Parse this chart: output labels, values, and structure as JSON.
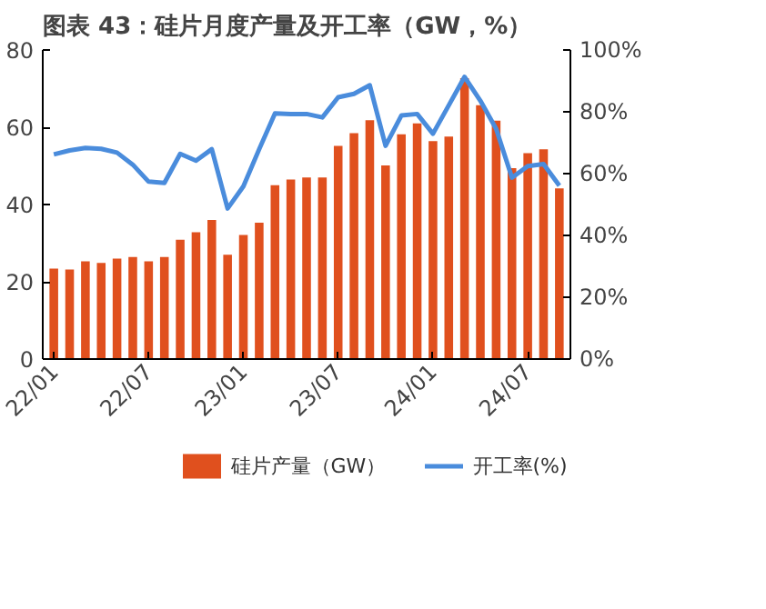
{
  "chart_data": {
    "type": "bar",
    "title": "图表 43：硅片月度产量及开工率（GW，%）",
    "categories": [
      "22/01",
      null,
      null,
      null,
      null,
      null,
      "22/07",
      null,
      null,
      null,
      null,
      null,
      "23/01",
      null,
      null,
      null,
      null,
      null,
      "23/07",
      null,
      null,
      null,
      null,
      null,
      "24/01",
      null,
      null,
      null,
      null,
      null,
      "24/07",
      null,
      null
    ],
    "series": [
      {
        "name": "硅片产量（GW）",
        "color": "#e0501e",
        "values": [
          23.4,
          23.2,
          25.3,
          24.9,
          26,
          26.4,
          25.3,
          26.4,
          30.9,
          32.8,
          36,
          27,
          32.1,
          35.3,
          45,
          46.5,
          47,
          47,
          55.2,
          58.5,
          61.8,
          50.1,
          58.2,
          61,
          56.4,
          57.6,
          72.7,
          65.7,
          61.7,
          49.4,
          53.3,
          54.3,
          44.2
        ]
      },
      {
        "name": "开工率(%)",
        "color": "#4a8cdc",
        "type": "line",
        "axis": "y2",
        "values": [
          66.2,
          67.5,
          68.3,
          68,
          66.8,
          62.9,
          57.4,
          57,
          66.4,
          64.2,
          67.9,
          48.7,
          55.9,
          67.9,
          79.5,
          79.3,
          79.3,
          78.2,
          84.7,
          85.8,
          88.6,
          69,
          78.8,
          79.3,
          72.9,
          82.1,
          91.3,
          83.6,
          74.5,
          58.7,
          62.4,
          63.1,
          56.1
        ]
      }
    ],
    "ylim": [
      0,
      80
    ],
    "yticks": [
      0,
      20,
      40,
      60,
      80
    ],
    "y2lim": [
      0,
      100
    ],
    "y2ticks": [
      {
        "value": 0,
        "label": "0%"
      },
      {
        "value": 20,
        "label": "20%"
      },
      {
        "value": 40,
        "label": "40%"
      },
      {
        "value": 60,
        "label": "60%"
      },
      {
        "value": 80,
        "label": "80%"
      },
      {
        "value": 100,
        "label": "100%"
      }
    ],
    "grid": false,
    "legend": "bottom"
  }
}
